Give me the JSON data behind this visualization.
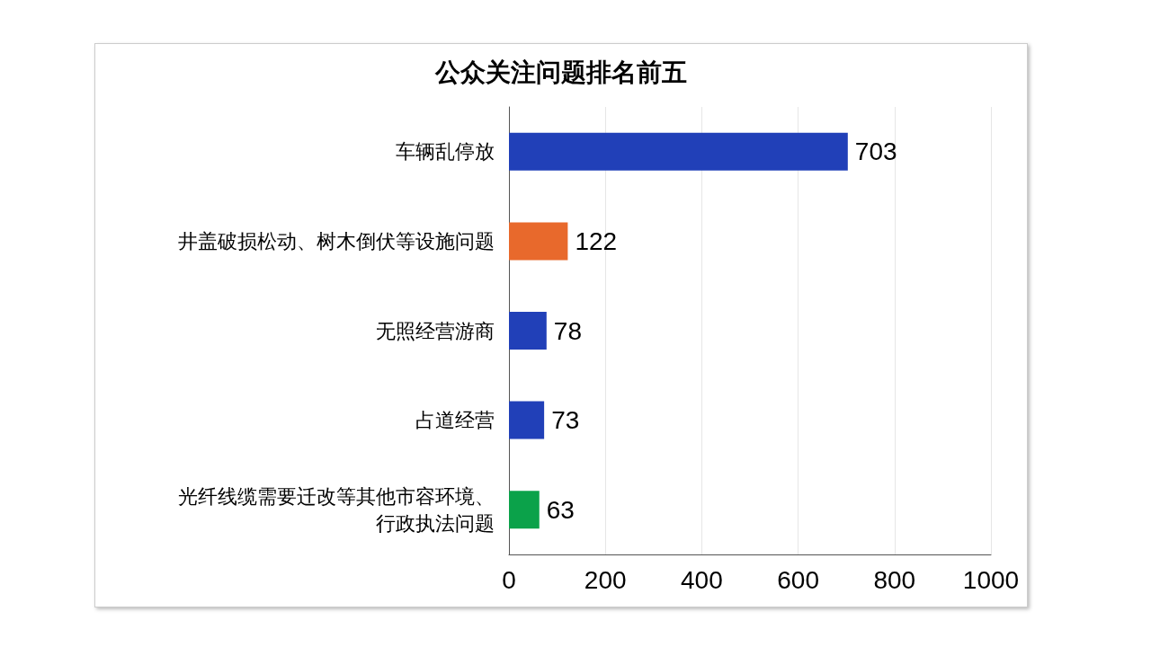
{
  "chart_data": {
    "type": "bar",
    "orientation": "horizontal",
    "title": "公众关注问题排名前五",
    "categories": [
      "车辆乱停放",
      "井盖破损松动、树木倒伏等设施问题",
      "无照经营游商",
      "占道经营",
      "光纤线缆需要迁改等其他市容环境、行政执法问题"
    ],
    "values": [
      703,
      122,
      78,
      73,
      63
    ],
    "colors": [
      "#2140b8",
      "#e8692c",
      "#2140b8",
      "#2140b8",
      "#0ba24a"
    ],
    "xlim": [
      0,
      1000
    ],
    "xticks": [
      0,
      200,
      400,
      600,
      800,
      {
        "value": 1000,
        "label": "1000"
      }
    ],
    "grid": "x",
    "data_labels": true
  }
}
